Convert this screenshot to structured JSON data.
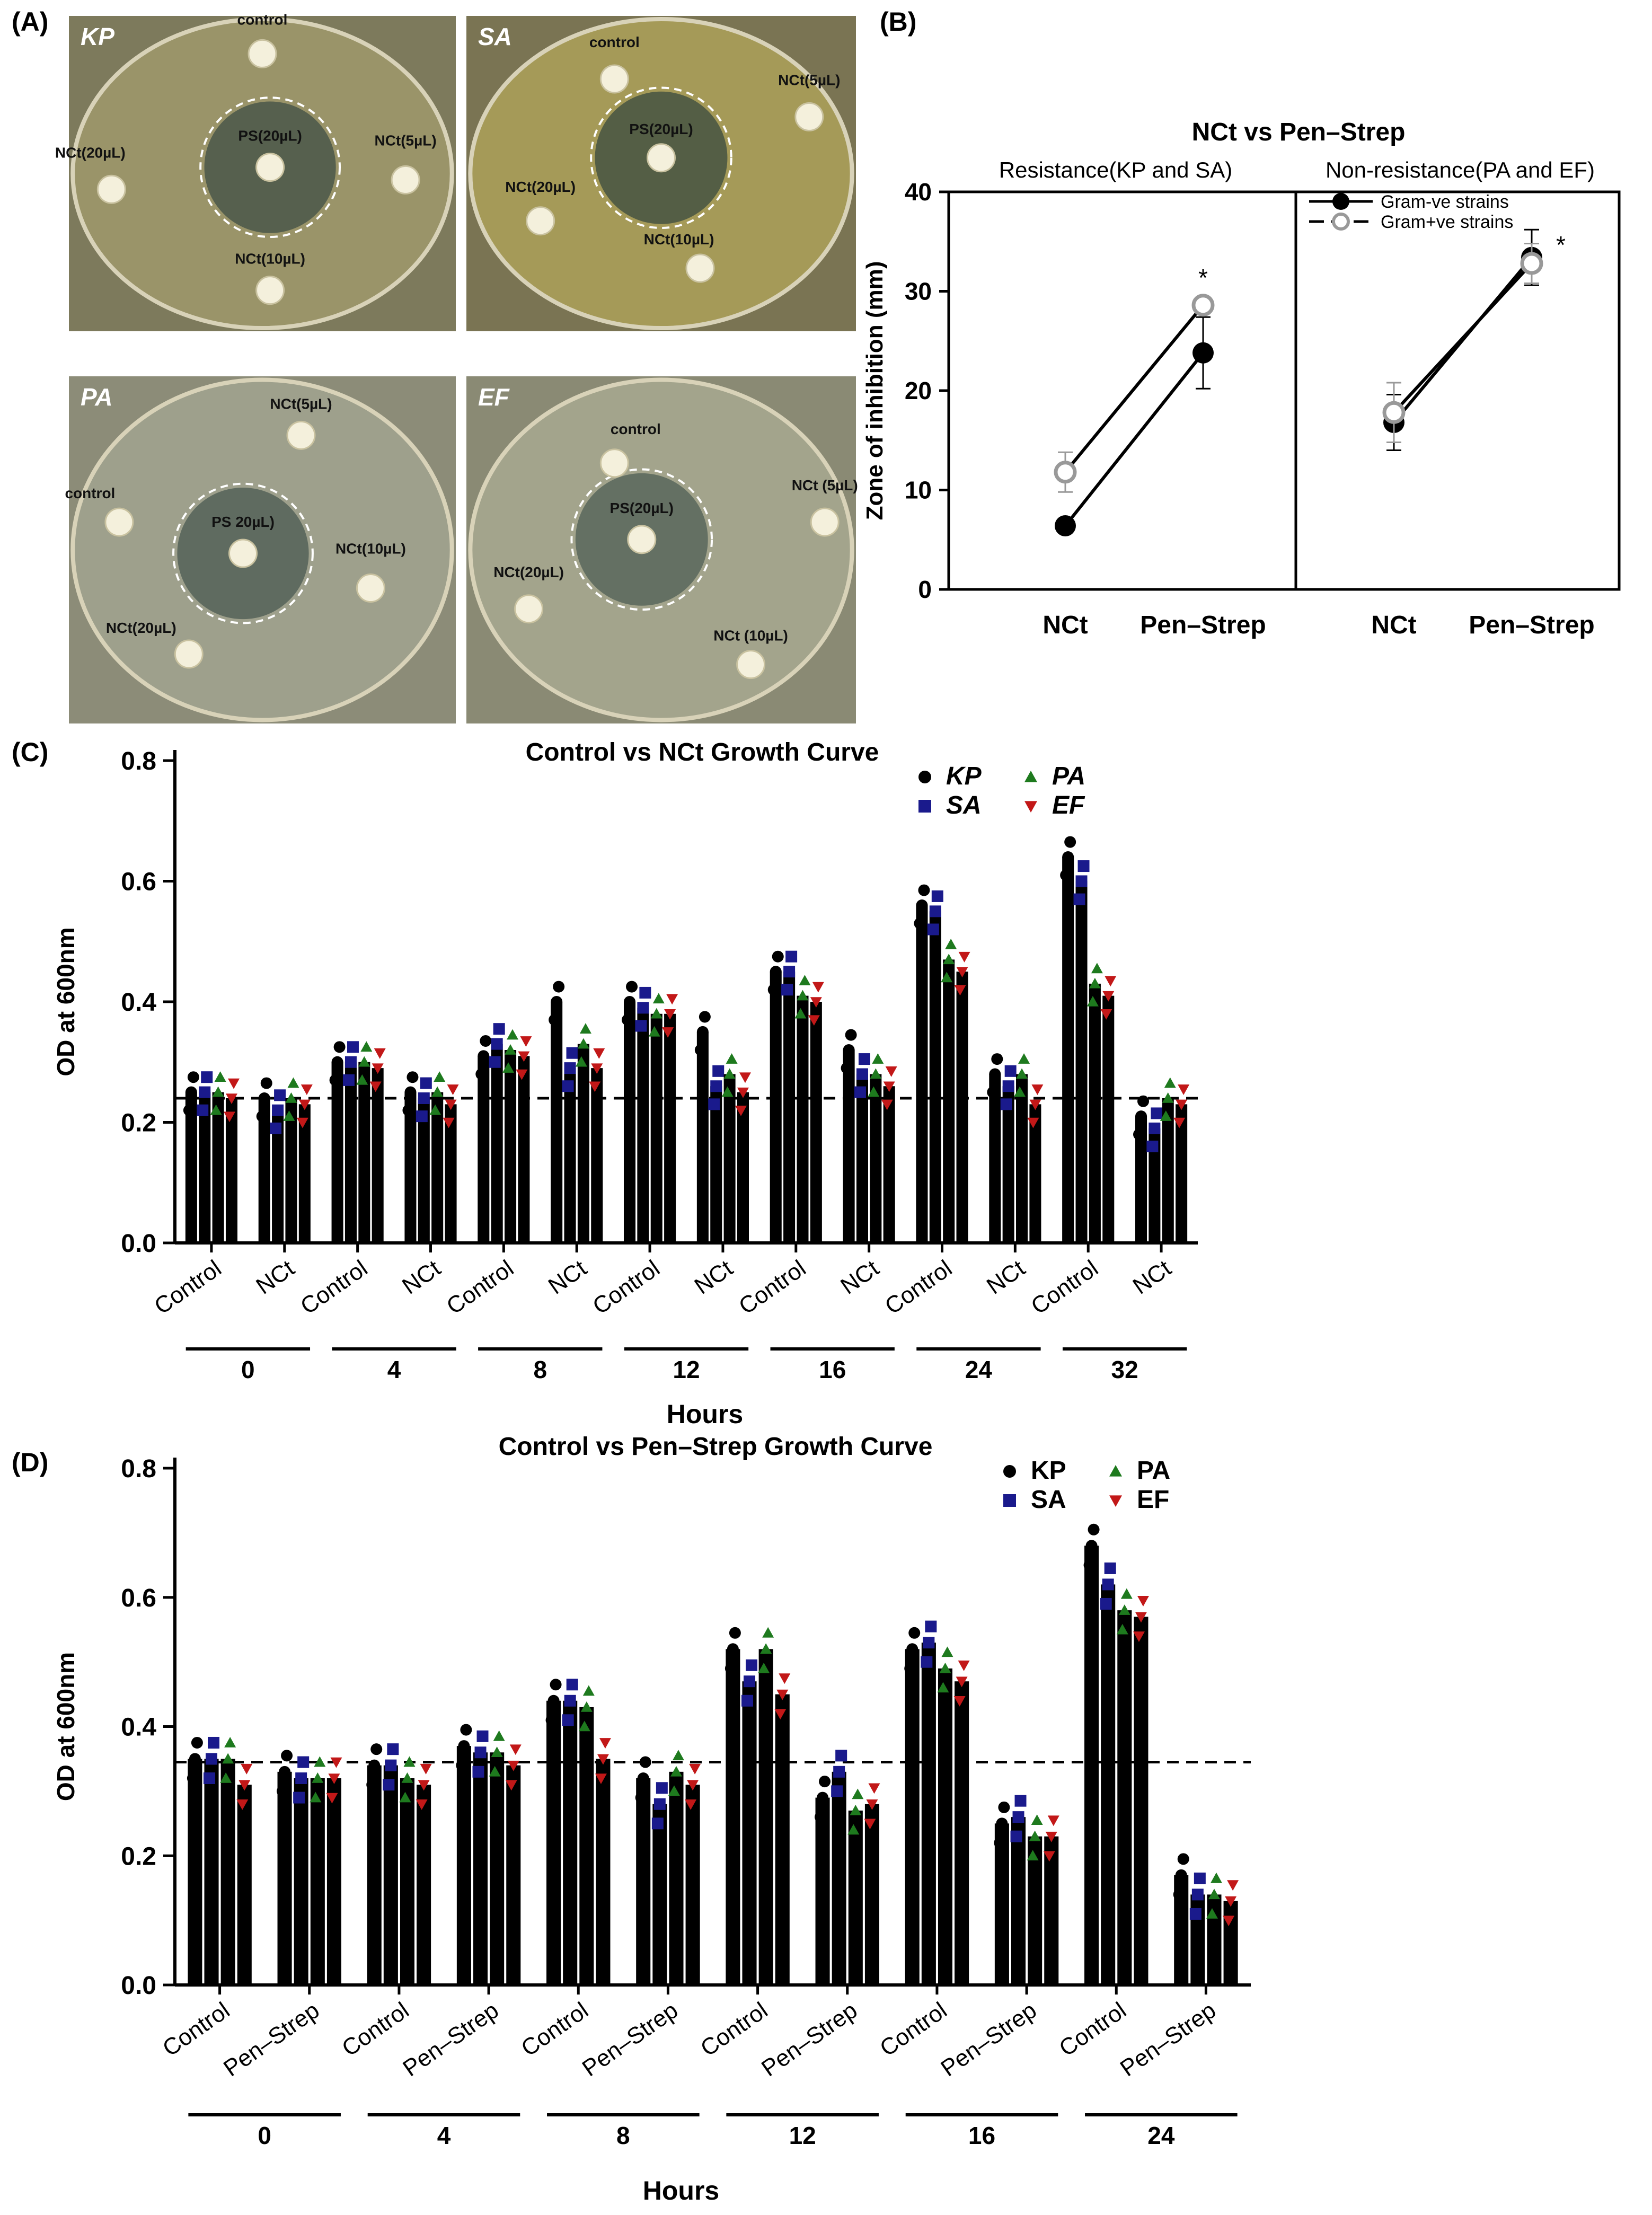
{
  "panel_labels": {
    "a": "(A)",
    "b": "(B)",
    "c": "(C)",
    "d": "(D)"
  },
  "colors": {
    "KP": "#000000",
    "SA": "#1a1a8c",
    "PA": "#1e7a1e",
    "EF": "#c21818",
    "open_marker": "#999999"
  },
  "plates": [
    {
      "strain": "KP",
      "labels": [
        "control",
        "NCt(20µL)",
        "PS(20µL)",
        "NCt(5µL)",
        "NCt(10µL)"
      ]
    },
    {
      "strain": "SA",
      "labels": [
        "control",
        "NCt(5µL)",
        "NCt(20µL)",
        "PS(20µL)",
        "NCt(10µL)"
      ]
    },
    {
      "strain": "PA",
      "labels": [
        "NCt(5µL)",
        "control",
        "PS 20µL)",
        "NCt(10µL)",
        "NCt(20µL)"
      ]
    },
    {
      "strain": "EF",
      "labels": [
        "control",
        "NCt (5µL)",
        "NCt(20µL)",
        "PS(20µL)",
        "NCt (10µL)"
      ]
    }
  ],
  "chart_data": [
    {
      "panel": "B",
      "type": "line",
      "title": "NCt vs Pen–Strep",
      "subtitles": [
        "Resistance(KP and SA)",
        "Non-resistance(PA and EF)"
      ],
      "ylabel": "Zone of inhibition (mm)",
      "ylim": [
        0,
        40
      ],
      "yticks": [
        0,
        10,
        20,
        30,
        40
      ],
      "categories": [
        "NCt",
        "Pen–Strep"
      ],
      "legend": [
        "Gram-ve strains",
        "Gram+ve strains"
      ],
      "significance": "*",
      "subpanels": [
        {
          "series": [
            {
              "name": "Gram-ve strains",
              "values": [
                6.4,
                23.8
              ],
              "errors": [
                0.6,
                3.6
              ]
            },
            {
              "name": "Gram+ve strains",
              "values": [
                11.8,
                28.6
              ],
              "errors": [
                2.0,
                0.8
              ]
            }
          ]
        },
        {
          "series": [
            {
              "name": "Gram-ve strains",
              "values": [
                16.8,
                33.4
              ],
              "errors": [
                2.8,
                2.8
              ]
            },
            {
              "name": "Gram+ve strains",
              "values": [
                17.8,
                32.8
              ],
              "errors": [
                3.0,
                2.0
              ]
            }
          ]
        }
      ]
    },
    {
      "panel": "C",
      "type": "bar",
      "title": "Control vs NCt Growth Curve",
      "ylabel": "OD at 600nm",
      "xlabel": "Hours",
      "ylim": [
        0,
        0.8
      ],
      "yticks": [
        "0.0",
        "0.2",
        "0.4",
        "0.6",
        "0.8"
      ],
      "reference_line": 0.24,
      "groups": [
        "0",
        "4",
        "8",
        "12",
        "16",
        "24",
        "32"
      ],
      "conditions": [
        "Control",
        "NCt"
      ],
      "legend": [
        "KP",
        "SA",
        "PA",
        "EF"
      ],
      "series": [
        {
          "name": "KP",
          "values": [
            0.25,
            0.24,
            0.3,
            0.25,
            0.31,
            0.4,
            0.4,
            0.35,
            0.45,
            0.32,
            0.56,
            0.28,
            0.64,
            0.21
          ]
        },
        {
          "name": "SA",
          "values": [
            0.25,
            0.22,
            0.3,
            0.24,
            0.33,
            0.29,
            0.39,
            0.26,
            0.45,
            0.28,
            0.55,
            0.26,
            0.6,
            0.19
          ]
        },
        {
          "name": "PA",
          "values": [
            0.25,
            0.24,
            0.3,
            0.25,
            0.32,
            0.33,
            0.38,
            0.28,
            0.41,
            0.28,
            0.47,
            0.28,
            0.43,
            0.24
          ]
        },
        {
          "name": "EF",
          "values": [
            0.24,
            0.23,
            0.29,
            0.23,
            0.31,
            0.29,
            0.38,
            0.25,
            0.4,
            0.26,
            0.45,
            0.23,
            0.41,
            0.23
          ]
        }
      ]
    },
    {
      "panel": "D",
      "type": "bar",
      "title": "Control vs Pen–Strep Growth Curve",
      "ylabel": "OD at 600nm",
      "xlabel": "Hours",
      "ylim": [
        0,
        0.8
      ],
      "yticks": [
        "0.0",
        "0.2",
        "0.4",
        "0.6",
        "0.8"
      ],
      "reference_line": 0.345,
      "groups": [
        "0",
        "4",
        "8",
        "12",
        "16",
        "24"
      ],
      "conditions": [
        "Control",
        "Pen–Strep"
      ],
      "legend": [
        "KP",
        "SA",
        "PA",
        "EF"
      ],
      "series": [
        {
          "name": "KP",
          "values": [
            0.35,
            0.33,
            0.34,
            0.37,
            0.44,
            0.32,
            0.52,
            0.29,
            0.52,
            0.25,
            0.68,
            0.17
          ]
        },
        {
          "name": "SA",
          "values": [
            0.35,
            0.32,
            0.34,
            0.36,
            0.44,
            0.28,
            0.47,
            0.33,
            0.53,
            0.26,
            0.62,
            0.14
          ]
        },
        {
          "name": "PA",
          "values": [
            0.35,
            0.32,
            0.32,
            0.36,
            0.43,
            0.33,
            0.52,
            0.27,
            0.49,
            0.23,
            0.58,
            0.14
          ]
        },
        {
          "name": "EF",
          "values": [
            0.31,
            0.32,
            0.31,
            0.34,
            0.35,
            0.31,
            0.45,
            0.28,
            0.47,
            0.23,
            0.57,
            0.13
          ]
        }
      ]
    }
  ]
}
